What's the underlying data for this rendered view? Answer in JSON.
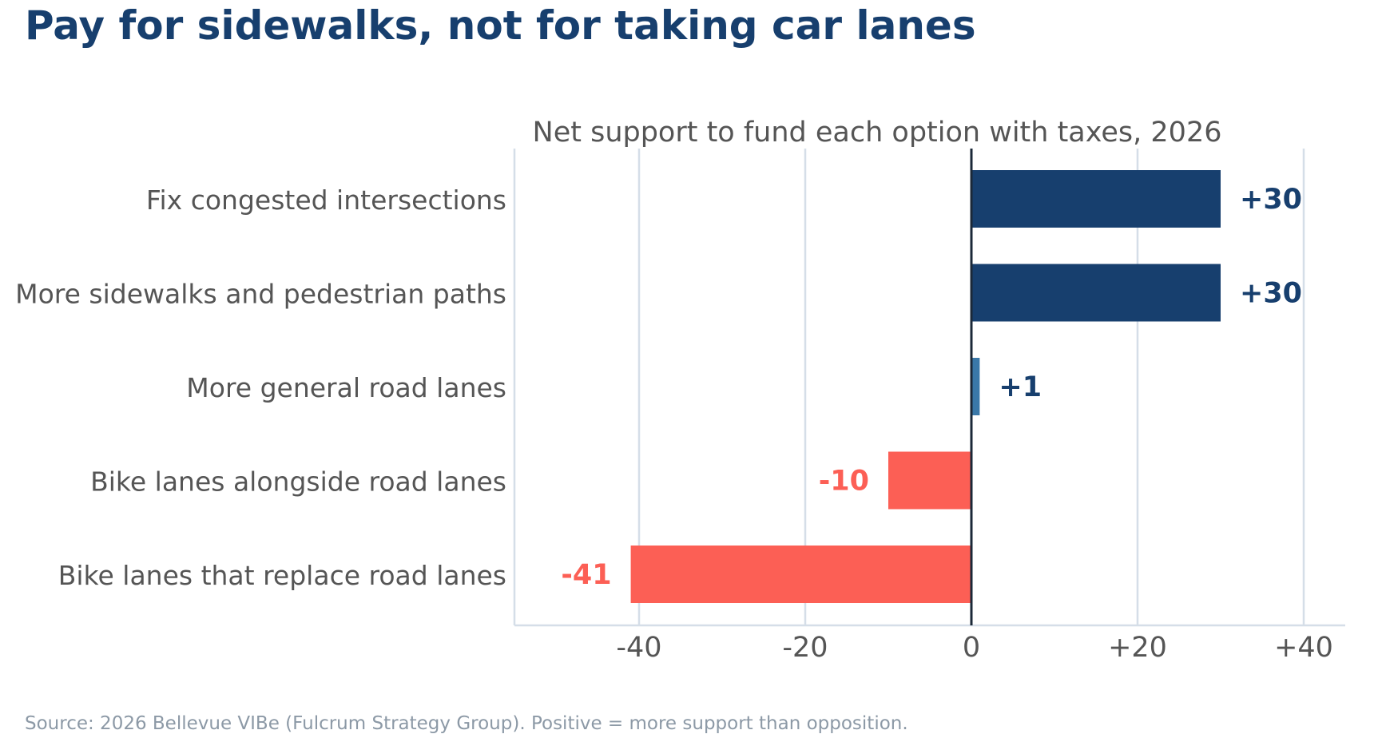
{
  "title": "Pay for sidewalks, not for taking car lanes",
  "source": "Source: 2026 Bellevue VIBe (Fulcrum Strategy Group). Positive = more support than opposition.",
  "chart_data": {
    "type": "bar",
    "orientation": "horizontal",
    "subtitle": "Net support to fund each option with taxes, 2026",
    "categories": [
      "Fix congested intersections",
      "More sidewalks and pedestrian paths",
      "More general road lanes",
      "Bike lanes alongside road lanes",
      "Bike lanes that replace road lanes"
    ],
    "values": [
      30,
      30,
      1,
      -10,
      -41
    ],
    "value_labels": [
      "+30",
      "+30",
      "+1",
      "-10",
      "-41"
    ],
    "xlim": [
      -55,
      45
    ],
    "xticks": [
      -40,
      -20,
      0,
      20,
      40
    ],
    "xtick_labels": [
      "-40",
      "-20",
      "0",
      "+20",
      "+40"
    ],
    "xlabel": "",
    "ylabel": "",
    "grid": "vertical",
    "legend": "none",
    "colors": {
      "strong_positive": "#173f6e",
      "weak_positive": "#3a78a8",
      "negative": "#fc5f55",
      "zero_line": "#1b2838",
      "grid": "#d5dee8",
      "axis_text": "#555555",
      "title": "#173f6e",
      "source": "#8c99a6"
    }
  }
}
